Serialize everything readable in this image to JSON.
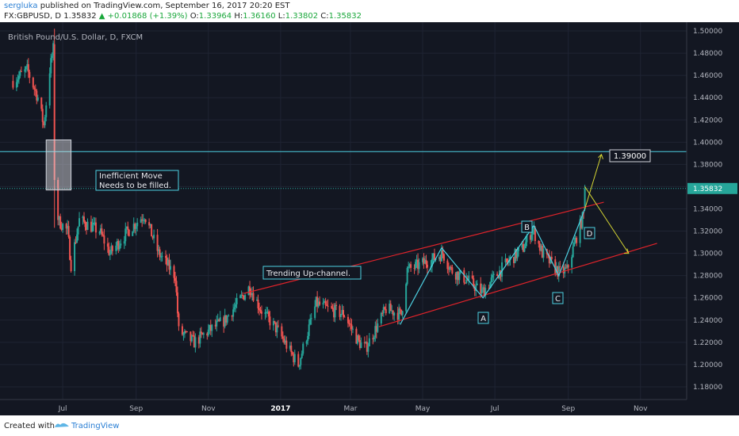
{
  "header": {
    "user": "sergluka",
    "published_text": "published on TradingView.com, September 16, 2017 20:20 EST",
    "symbol": "FX:GBPUSD, D",
    "last": "1.35832",
    "change": "+0.01868 (+1.39%)",
    "open_label": "O:",
    "open": "1.33964",
    "high_label": "H:",
    "high": "1.36160",
    "low_label": "L:",
    "low": "1.33802",
    "close_label": "C:",
    "close": "1.35832"
  },
  "chart_data": {
    "type": "candlestick",
    "title": "British Pound/U.S. Dollar, D, FXCM",
    "ylim": [
      1.17,
      1.51
    ],
    "y_ticks": [
      "1.50000",
      "1.48000",
      "1.46000",
      "1.44000",
      "1.42000",
      "1.40000",
      "1.38000",
      "1.36000",
      "1.34000",
      "1.32000",
      "1.30000",
      "1.28000",
      "1.26000",
      "1.24000",
      "1.22000",
      "1.20000",
      "1.18000"
    ],
    "x_ticks": [
      "Jul",
      "Sep",
      "Nov",
      "2017",
      "Mar",
      "May",
      "Jul",
      "Sep",
      "Nov"
    ],
    "last_price_label": "1.35832",
    "target_label": "1.39000",
    "annotations": {
      "inefficient_1": "Inefficient Move",
      "inefficient_2": "Needs to be filled.",
      "channel": "Trending Up-channel.",
      "point_a": "A",
      "point_b": "B",
      "point_c": "C",
      "point_d": "D"
    },
    "path_points": [
      [
        "2016-05-20",
        1.455
      ],
      [
        "2016-06-01",
        1.465
      ],
      [
        "2016-06-10",
        1.44
      ],
      [
        "2016-06-15",
        1.415
      ],
      [
        "2016-06-20",
        1.465
      ],
      [
        "2016-06-24",
        1.49
      ],
      [
        "2016-06-27",
        1.33
      ],
      [
        "2016-07-05",
        1.32
      ],
      [
        "2016-07-08",
        1.29
      ],
      [
        "2016-07-15",
        1.33
      ],
      [
        "2016-08-01",
        1.32
      ],
      [
        "2016-08-10",
        1.3
      ],
      [
        "2016-08-25",
        1.32
      ],
      [
        "2016-09-08",
        1.335
      ],
      [
        "2016-09-20",
        1.3
      ],
      [
        "2016-10-04",
        1.28
      ],
      [
        "2016-10-07",
        1.23
      ],
      [
        "2016-10-20",
        1.22
      ],
      [
        "2016-11-01",
        1.23
      ],
      [
        "2016-11-15",
        1.24
      ],
      [
        "2016-12-06",
        1.27
      ],
      [
        "2016-12-15",
        1.25
      ],
      [
        "2016-12-30",
        1.23
      ],
      [
        "2017-01-10",
        1.21
      ],
      [
        "2017-01-16",
        1.2
      ],
      [
        "2017-01-31",
        1.255
      ],
      [
        "2017-02-10",
        1.25
      ],
      [
        "2017-02-24",
        1.245
      ],
      [
        "2017-03-08",
        1.22
      ],
      [
        "2017-03-14",
        1.215
      ],
      [
        "2017-03-31",
        1.25
      ],
      [
        "2017-04-13",
        1.245
      ],
      [
        "2017-04-18",
        1.285
      ],
      [
        "2017-05-10",
        1.295
      ],
      [
        "2017-05-18",
        1.3
      ],
      [
        "2017-05-25",
        1.285
      ],
      [
        "2017-06-09",
        1.275
      ],
      [
        "2017-06-20",
        1.265
      ],
      [
        "2017-07-10",
        1.29
      ],
      [
        "2017-07-25",
        1.305
      ],
      [
        "2017-08-02",
        1.322
      ],
      [
        "2017-08-10",
        1.3
      ],
      [
        "2017-08-24",
        1.283
      ],
      [
        "2017-08-31",
        1.285
      ],
      [
        "2017-09-08",
        1.315
      ],
      [
        "2017-09-14",
        1.335
      ],
      [
        "2017-09-15",
        1.35832
      ]
    ]
  },
  "footer": {
    "created_with": "Created with",
    "brand": "TradingView"
  },
  "colors": {
    "background": "#131722",
    "up": "#26a69a",
    "down": "#ef5350",
    "channel": "#e0232a",
    "wave": "#4dd0e1",
    "projection": "#d6d633"
  }
}
